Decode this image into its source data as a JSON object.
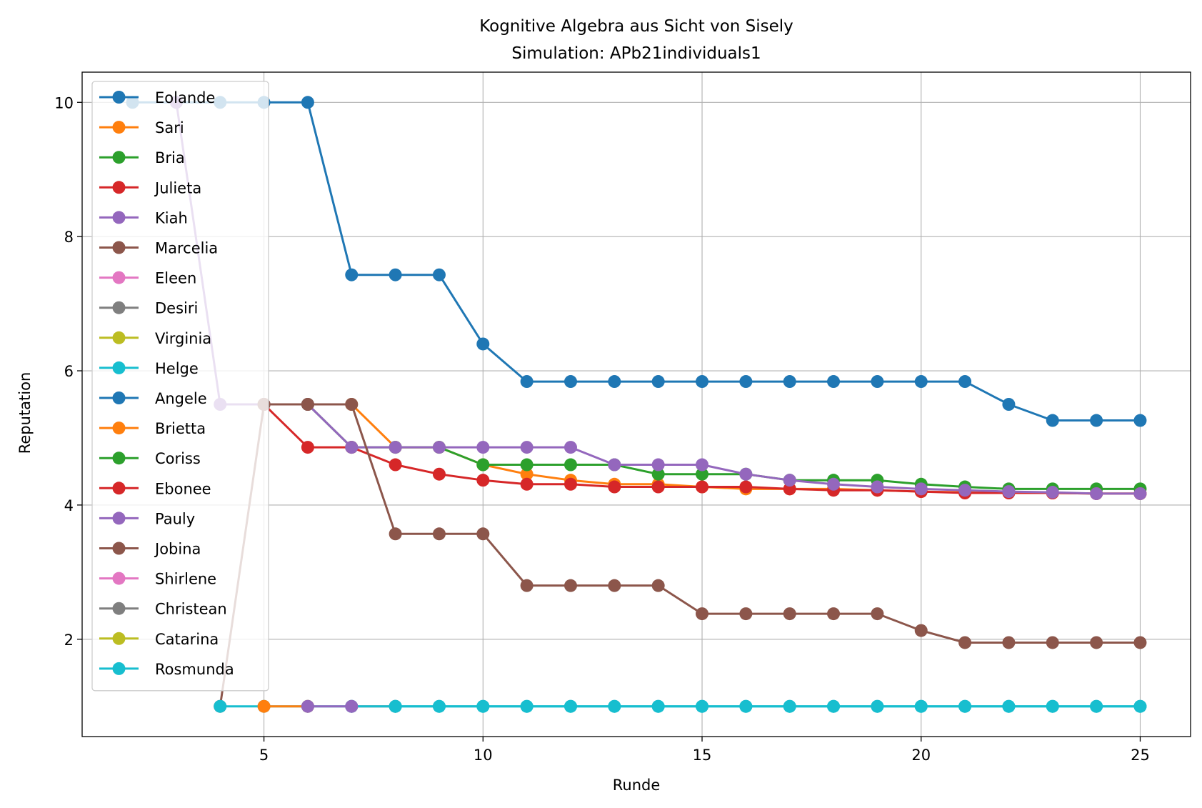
{
  "chart_data": {
    "type": "line",
    "title": "Kognitive Algebra aus Sicht von Sisely",
    "subtitle": "Simulation: APb21individuals1",
    "xlabel": "Runde",
    "ylabel": "Reputation",
    "xlim": [
      0.85,
      26.15
    ],
    "ylim": [
      0.55,
      10.45
    ],
    "xticks": [
      5,
      10,
      15,
      20,
      25
    ],
    "yticks": [
      2,
      4,
      6,
      8,
      10
    ],
    "grid": true,
    "legend_position": "upper-left",
    "series": [
      {
        "name": "Eolande",
        "color": "#1f77b4",
        "x": [
          2,
          3,
          4,
          5,
          6,
          7,
          8,
          9,
          10,
          11,
          12,
          13,
          14,
          15,
          16,
          17,
          18,
          19,
          20,
          21,
          22,
          23,
          24,
          25
        ],
        "y": [
          10,
          10,
          10,
          10,
          10,
          7.43,
          7.43,
          7.43,
          6.4,
          5.84,
          5.84,
          5.84,
          5.84,
          5.84,
          5.84,
          5.84,
          5.84,
          5.84,
          5.84,
          5.84,
          5.5,
          5.26,
          5.26,
          5.26
        ]
      },
      {
        "name": "Sari",
        "color": "#ff7f0e",
        "x": [
          5,
          6,
          7,
          8,
          9,
          10,
          11,
          12,
          13,
          14,
          15,
          16,
          17,
          18,
          19,
          20,
          21,
          22,
          23,
          24,
          25
        ],
        "y": [
          5.5,
          5.5,
          5.5,
          4.86,
          4.86,
          4.6,
          4.46,
          4.37,
          4.31,
          4.31,
          4.27,
          4.24,
          4.24,
          4.24,
          4.22,
          4.2,
          4.19,
          4.19,
          4.18,
          4.17,
          4.17
        ]
      },
      {
        "name": "Bria",
        "color": "#2ca02c",
        "x": [
          5,
          6,
          7,
          8,
          9,
          10,
          11,
          12,
          13,
          14,
          15,
          16,
          17,
          18,
          19,
          20,
          21,
          22,
          23,
          24,
          25
        ],
        "y": [
          5.5,
          5.5,
          4.86,
          4.86,
          4.86,
          4.6,
          4.6,
          4.6,
          4.6,
          4.46,
          4.46,
          4.46,
          4.37,
          4.37,
          4.37,
          4.31,
          4.27,
          4.24,
          4.24,
          4.24,
          4.24
        ]
      },
      {
        "name": "Julieta",
        "color": "#d62728",
        "x": [
          5,
          6,
          7,
          8,
          9,
          10,
          11,
          12,
          13,
          14,
          15,
          16,
          17,
          18,
          19,
          20,
          21,
          22,
          23,
          24,
          25
        ],
        "y": [
          5.5,
          4.86,
          4.86,
          4.6,
          4.46,
          4.37,
          4.31,
          4.31,
          4.27,
          4.27,
          4.27,
          4.27,
          4.24,
          4.22,
          4.22,
          4.2,
          4.18,
          4.18,
          4.18,
          4.17,
          4.17
        ]
      },
      {
        "name": "Kiah",
        "color": "#9467bd",
        "x": [
          3,
          4,
          5,
          6,
          7,
          8,
          9,
          10,
          11,
          12,
          13,
          14,
          15,
          16,
          17,
          18,
          19,
          20,
          21,
          22,
          23,
          24,
          25
        ],
        "y": [
          10,
          5.5,
          5.5,
          5.5,
          4.86,
          4.86,
          4.86,
          4.86,
          4.86,
          4.86,
          4.6,
          4.6,
          4.6,
          4.46,
          4.37,
          4.31,
          4.27,
          4.24,
          4.22,
          4.2,
          4.19,
          4.17,
          4.17
        ]
      },
      {
        "name": "Marcelia",
        "color": "#8c564b",
        "x": [
          4,
          5,
          6,
          7,
          8,
          9,
          10,
          11,
          12,
          13,
          14,
          15,
          16,
          17,
          18,
          19,
          20,
          21,
          22,
          23,
          24,
          25
        ],
        "y": [
          1,
          5.5,
          5.5,
          5.5,
          3.57,
          3.57,
          3.57,
          2.8,
          2.8,
          2.8,
          2.8,
          2.38,
          2.38,
          2.38,
          2.38,
          2.38,
          2.13,
          1.95,
          1.95,
          1.95,
          1.95,
          1.95
        ]
      },
      {
        "name": "Eleen",
        "color": "#e377c2",
        "x": [],
        "y": []
      },
      {
        "name": "Desiri",
        "color": "#7f7f7f",
        "x": [
          7,
          8
        ],
        "y": [
          1,
          1
        ]
      },
      {
        "name": "Virginia",
        "color": "#bcbd22",
        "x": [],
        "y": []
      },
      {
        "name": "Helge",
        "color": "#17becf",
        "x": [
          4,
          5,
          6,
          7,
          8,
          9,
          10,
          11,
          12,
          13,
          14,
          15,
          16,
          17,
          18,
          19,
          20,
          21,
          22,
          23,
          24,
          25
        ],
        "y": [
          1,
          1,
          1,
          1,
          1,
          1,
          1,
          1,
          1,
          1,
          1,
          1,
          1,
          1,
          1,
          1,
          1,
          1,
          1,
          1,
          1,
          1
        ]
      },
      {
        "name": "Angele",
        "color": "#1f77b4",
        "x": [],
        "y": []
      },
      {
        "name": "Brietta",
        "color": "#ff7f0e",
        "x": [
          5,
          6
        ],
        "y": [
          1,
          1
        ]
      },
      {
        "name": "Coriss",
        "color": "#2ca02c",
        "x": [],
        "y": []
      },
      {
        "name": "Ebonee",
        "color": "#d62728",
        "x": [],
        "y": []
      },
      {
        "name": "Pauly",
        "color": "#9467bd",
        "x": [
          6,
          7
        ],
        "y": [
          1,
          1
        ]
      },
      {
        "name": "Jobina",
        "color": "#8c564b",
        "x": [],
        "y": []
      },
      {
        "name": "Shirlene",
        "color": "#e377c2",
        "x": [],
        "y": []
      },
      {
        "name": "Christean",
        "color": "#7f7f7f",
        "x": [],
        "y": []
      },
      {
        "name": "Catarina",
        "color": "#bcbd22",
        "x": [],
        "y": []
      },
      {
        "name": "Rosmunda",
        "color": "#17becf",
        "x": [
          8,
          9,
          10,
          11,
          12,
          13,
          14,
          15,
          16,
          17,
          18,
          19,
          20,
          21,
          22,
          23,
          24,
          25
        ],
        "y": [
          1,
          1,
          1,
          1,
          1,
          1,
          1,
          1,
          1,
          1,
          1,
          1,
          1,
          1,
          1,
          1,
          1,
          1
        ]
      }
    ]
  }
}
